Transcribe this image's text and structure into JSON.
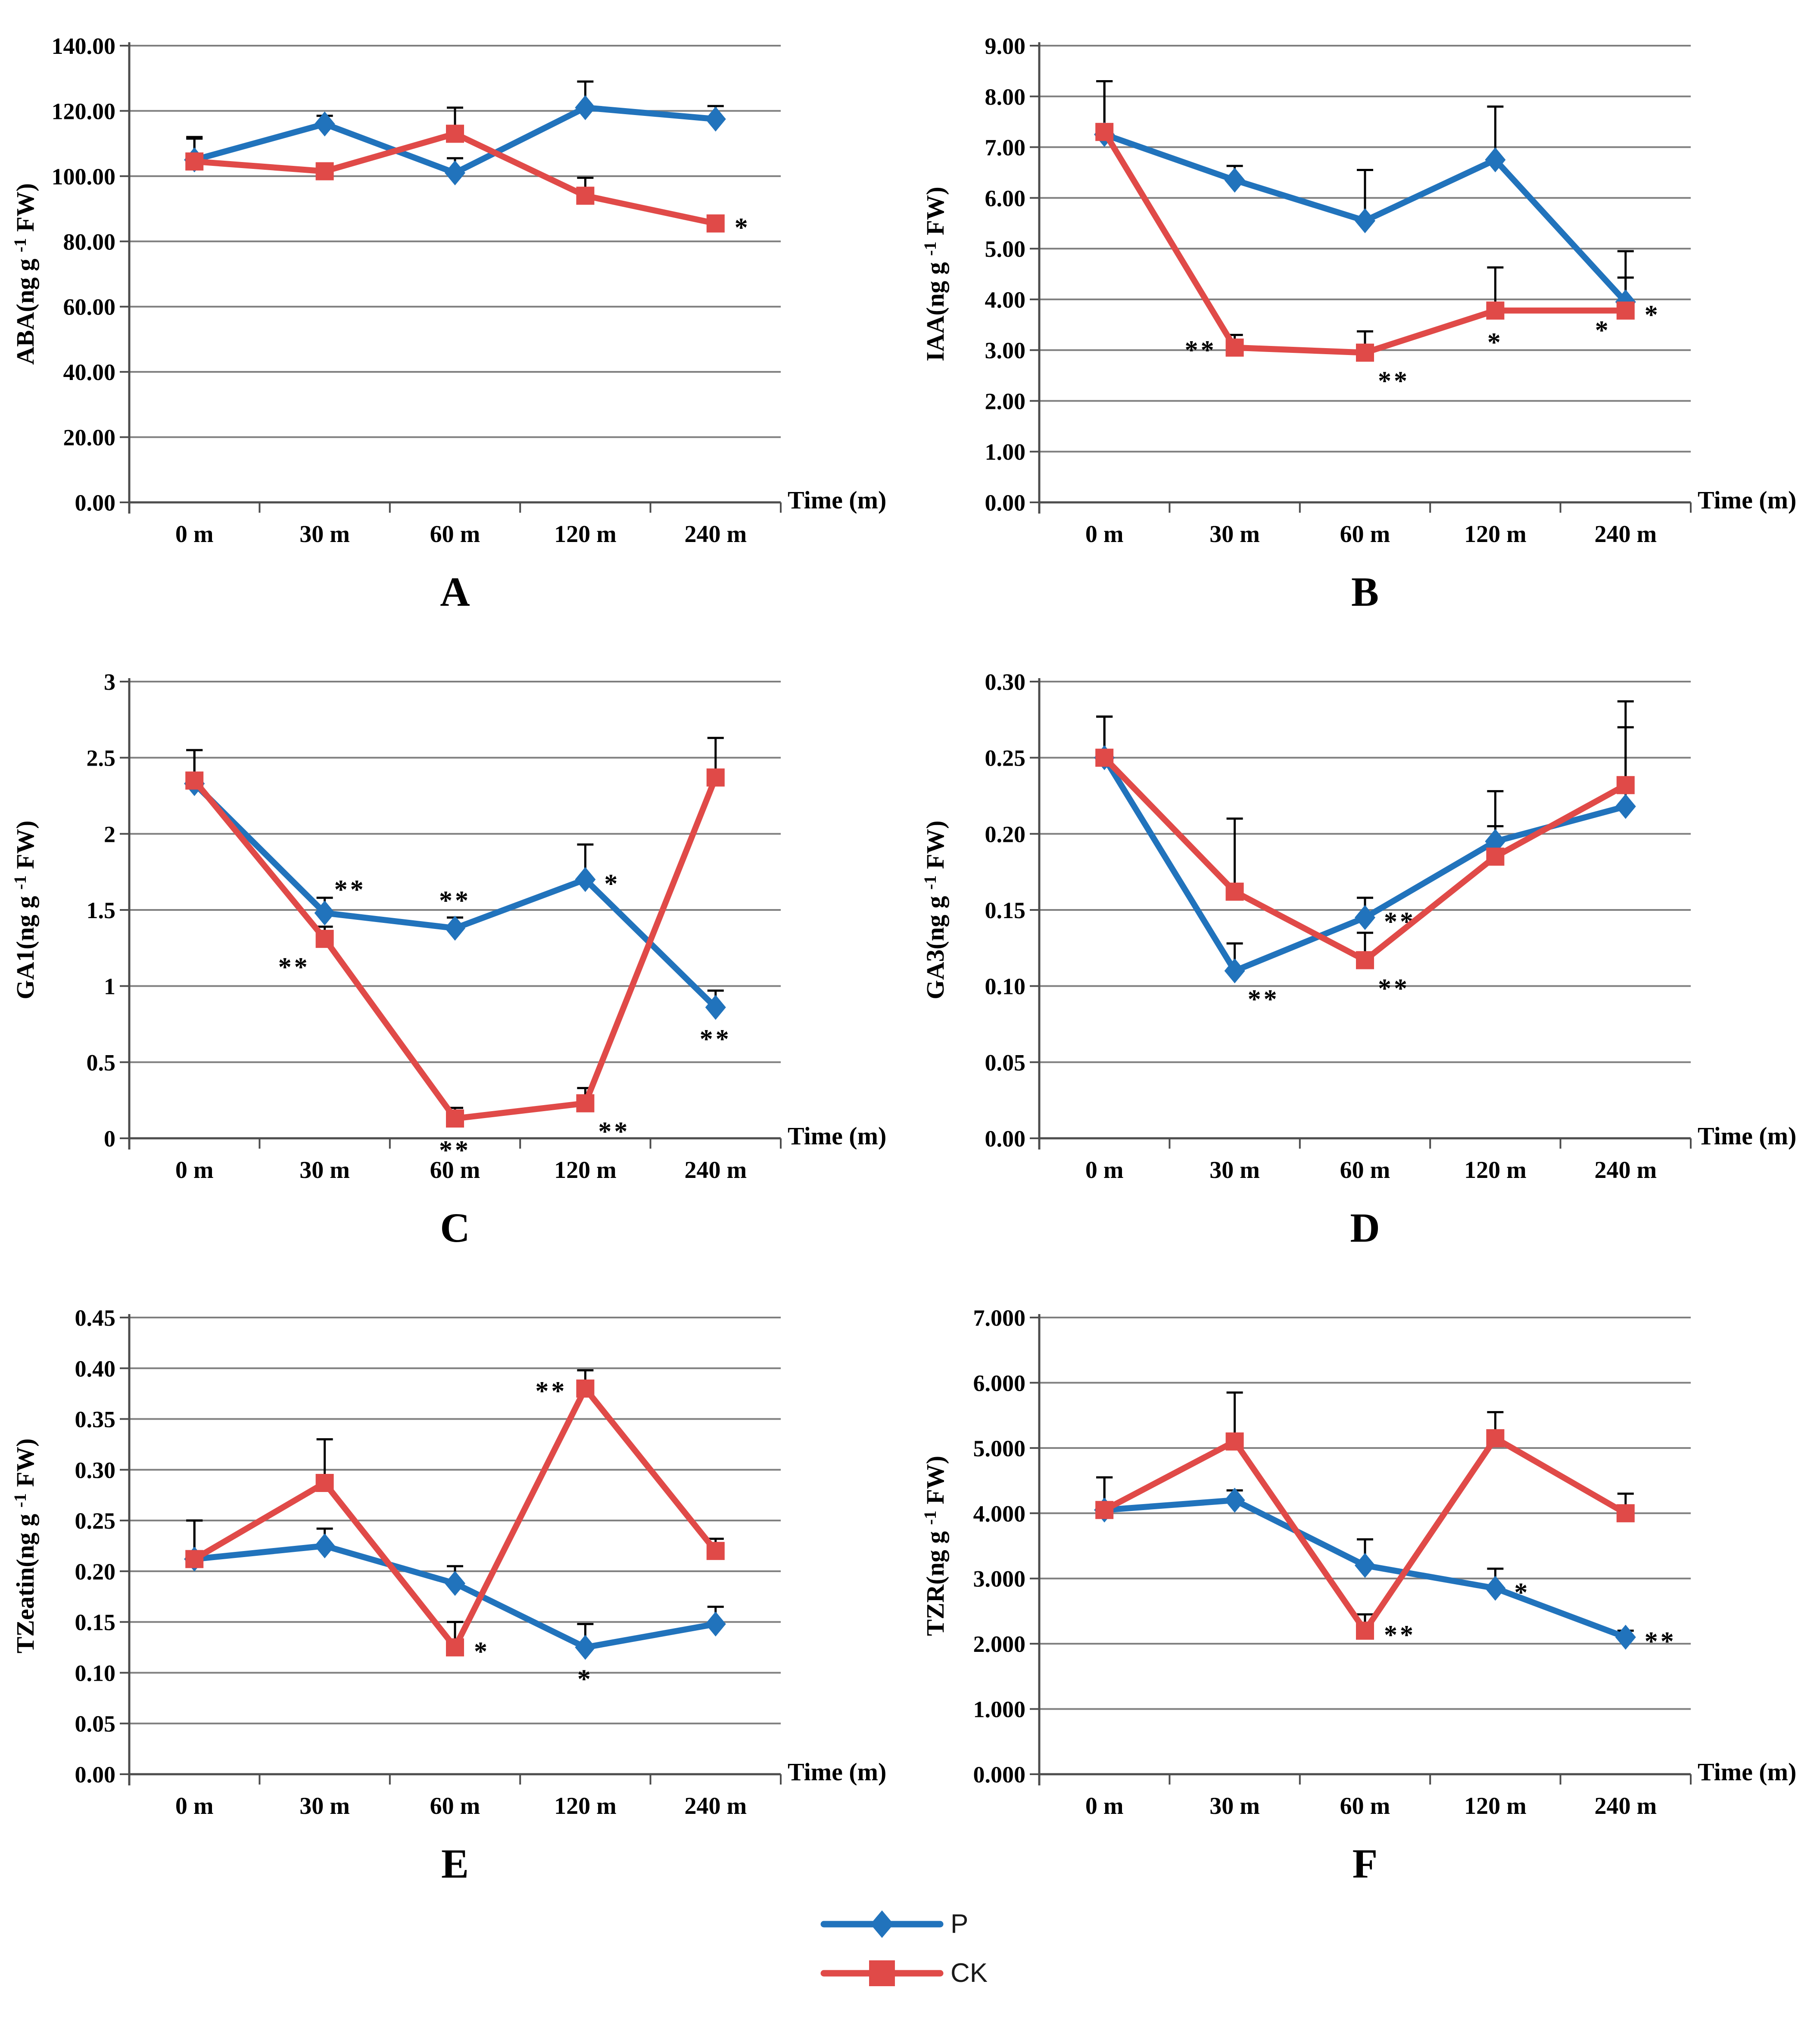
{
  "page": {
    "background": "#ffffff"
  },
  "colors": {
    "p_series": "#2173BC",
    "ck_series": "#E04A48",
    "error_bar": "#000000",
    "gridline": "#7F7F7F",
    "axis": "#4D4D4D",
    "text": "#000000"
  },
  "legend": {
    "items": [
      {
        "key": "P",
        "label": "P",
        "color": "#2173BC",
        "marker": "diamond"
      },
      {
        "key": "CK",
        "label": "CK",
        "color": "#E04A48",
        "marker": "square"
      }
    ]
  },
  "x_axis": {
    "categories": [
      "0 m",
      "30 m",
      "60 m",
      "120 m",
      "240 m"
    ],
    "title": "Time (m)"
  },
  "chart_data": [
    {
      "type": "line",
      "letter": "A",
      "ylabel": {
        "pre": "ABA(ng g ",
        "sup": "-1",
        "post": " FW)"
      },
      "ylim": [
        0,
        140
      ],
      "ytick_values": [
        0,
        20,
        40,
        60,
        80,
        100,
        120,
        140
      ],
      "ytick_labels": [
        "0.00",
        "20.00",
        "40.00",
        "60.00",
        "80.00",
        "100.00",
        "120.00",
        "140.00"
      ],
      "grid": true,
      "legend_position": "none",
      "categories": [
        "0 m",
        "30 m",
        "60 m",
        "120 m",
        "240 m"
      ],
      "series": [
        {
          "name": "P",
          "marker": "diamond",
          "values": [
            105,
            116,
            101,
            121,
            117.5
          ],
          "errors": [
            7,
            2.5,
            4.5,
            8,
            4
          ],
          "sig": [
            null,
            null,
            null,
            null,
            null
          ]
        },
        {
          "name": "CK",
          "marker": "square",
          "values": [
            104.5,
            101.5,
            113,
            94,
            85.5
          ],
          "errors": [
            7,
            1.5,
            8,
            5.5,
            2
          ],
          "sig": [
            null,
            null,
            null,
            null,
            {
              "text": "*",
              "pos": "right"
            }
          ]
        }
      ]
    },
    {
      "type": "line",
      "letter": "B",
      "ylabel": {
        "pre": "IAA(ng g ",
        "sup": "-1",
        "post": " FW)"
      },
      "ylim": [
        0,
        9
      ],
      "ytick_values": [
        0,
        1,
        2,
        3,
        4,
        5,
        6,
        7,
        8,
        9
      ],
      "ytick_labels": [
        "0.00",
        "1.00",
        "2.00",
        "3.00",
        "4.00",
        "5.00",
        "6.00",
        "7.00",
        "8.00",
        "9.00"
      ],
      "grid": true,
      "legend_position": "none",
      "categories": [
        "0 m",
        "30 m",
        "60 m",
        "120 m",
        "240 m"
      ],
      "series": [
        {
          "name": "P",
          "marker": "diamond",
          "values": [
            7.25,
            6.35,
            5.55,
            6.75,
            3.95
          ],
          "errors": [
            1.05,
            0.28,
            1.0,
            1.05,
            1.0
          ],
          "sig": [
            null,
            null,
            null,
            null,
            {
              "text": "*",
              "pos": "below-left"
            }
          ]
        },
        {
          "name": "CK",
          "marker": "square",
          "values": [
            7.3,
            3.05,
            2.95,
            3.78,
            3.78
          ],
          "errors": [
            1.0,
            0.25,
            0.42,
            0.85,
            0.65
          ],
          "sig": [
            null,
            {
              "text": "**",
              "pos": "left"
            },
            {
              "text": "**",
              "pos": "below-right"
            },
            {
              "text": "*",
              "pos": "below"
            },
            {
              "text": "*",
              "pos": "right"
            }
          ]
        }
      ]
    },
    {
      "type": "line",
      "letter": "C",
      "ylabel": {
        "pre": "GA1(ng g ",
        "sup": "-1",
        "post": " FW)"
      },
      "ylim": [
        0,
        3
      ],
      "ytick_values": [
        0,
        0.5,
        1,
        1.5,
        2,
        2.5,
        3
      ],
      "ytick_labels": [
        "0",
        "0.5",
        "1",
        "1.5",
        "2",
        "2.5",
        "3"
      ],
      "grid": true,
      "legend_position": "none",
      "categories": [
        "0 m",
        "30 m",
        "60 m",
        "120 m",
        "240 m"
      ],
      "series": [
        {
          "name": "P",
          "marker": "diamond",
          "values": [
            2.33,
            1.48,
            1.38,
            1.7,
            0.86
          ],
          "errors": [
            0.22,
            0.1,
            0.07,
            0.23,
            0.11
          ],
          "sig": [
            null,
            {
              "text": "**",
              "pos": "above-right"
            },
            {
              "text": "**",
              "pos": "above"
            },
            {
              "text": "*",
              "pos": "right"
            },
            {
              "text": "**",
              "pos": "below"
            }
          ]
        },
        {
          "name": "CK",
          "marker": "square",
          "values": [
            2.35,
            1.31,
            0.13,
            0.23,
            2.37
          ],
          "errors": [
            0.2,
            0.08,
            0.07,
            0.1,
            0.26
          ],
          "sig": [
            null,
            {
              "text": "**",
              "pos": "below-left"
            },
            {
              "text": "**",
              "pos": "below"
            },
            {
              "text": "**",
              "pos": "below-right"
            },
            null
          ]
        }
      ]
    },
    {
      "type": "line",
      "letter": "D",
      "ylabel": {
        "pre": "GA3(ng g ",
        "sup": "-1",
        "post": " FW)"
      },
      "ylim": [
        0,
        0.3
      ],
      "ytick_values": [
        0,
        0.05,
        0.1,
        0.15,
        0.2,
        0.25,
        0.3
      ],
      "ytick_labels": [
        "0.00",
        "0.05",
        "0.10",
        "0.15",
        "0.20",
        "0.25",
        "0.30"
      ],
      "grid": true,
      "legend_position": "none",
      "categories": [
        "0 m",
        "30 m",
        "60 m",
        "120 m",
        "240 m"
      ],
      "series": [
        {
          "name": "P",
          "marker": "diamond",
          "values": [
            0.25,
            0.11,
            0.145,
            0.195,
            0.218
          ],
          "errors": [
            0.027,
            0.018,
            0.013,
            0.033,
            0.052
          ],
          "sig": [
            null,
            {
              "text": "**",
              "pos": "below-right"
            },
            {
              "text": "**",
              "pos": "right"
            },
            null,
            null
          ]
        },
        {
          "name": "CK",
          "marker": "square",
          "values": [
            0.25,
            0.162,
            0.117,
            0.185,
            0.232
          ],
          "errors": [
            0.027,
            0.048,
            0.018,
            0.02,
            0.055
          ],
          "sig": [
            null,
            null,
            {
              "text": "**",
              "pos": "below-right"
            },
            null,
            null
          ]
        }
      ]
    },
    {
      "type": "line",
      "letter": "E",
      "ylabel": {
        "pre": "TZeatin(ng g ",
        "sup": "-1",
        "post": " FW)"
      },
      "ylim": [
        0,
        0.45
      ],
      "ytick_values": [
        0,
        0.05,
        0.1,
        0.15,
        0.2,
        0.25,
        0.3,
        0.35,
        0.4,
        0.45
      ],
      "ytick_labels": [
        "0.00",
        "0.05",
        "0.10",
        "0.15",
        "0.20",
        "0.25",
        "0.30",
        "0.35",
        "0.40",
        "0.45"
      ],
      "grid": true,
      "legend_position": "none",
      "categories": [
        "0 m",
        "30 m",
        "60 m",
        "120 m",
        "240 m"
      ],
      "series": [
        {
          "name": "P",
          "marker": "diamond",
          "values": [
            0.212,
            0.225,
            0.188,
            0.125,
            0.148
          ],
          "errors": [
            0.038,
            0.017,
            0.017,
            0.023,
            0.017
          ],
          "sig": [
            null,
            null,
            null,
            {
              "text": "*",
              "pos": "below"
            },
            null
          ]
        },
        {
          "name": "CK",
          "marker": "square",
          "values": [
            0.212,
            0.287,
            0.125,
            0.38,
            0.22
          ],
          "errors": [
            0.038,
            0.043,
            0.025,
            0.018,
            0.012
          ],
          "sig": [
            null,
            null,
            {
              "text": "*",
              "pos": "right"
            },
            {
              "text": "**",
              "pos": "left"
            },
            null
          ]
        }
      ]
    },
    {
      "type": "line",
      "letter": "F",
      "ylabel": {
        "pre": "TZR(ng g ",
        "sup": "-1",
        "post": " FW)"
      },
      "ylim": [
        0,
        7
      ],
      "ytick_values": [
        0,
        1,
        2,
        3,
        4,
        5,
        6,
        7
      ],
      "ytick_labels": [
        "0.000",
        "1.000",
        "2.000",
        "3.000",
        "4.000",
        "5.000",
        "6.000",
        "7.000"
      ],
      "grid": true,
      "legend_position": "none",
      "categories": [
        "0 m",
        "30 m",
        "60 m",
        "120 m",
        "240 m"
      ],
      "series": [
        {
          "name": "P",
          "marker": "diamond",
          "values": [
            4.05,
            4.2,
            3.2,
            2.85,
            2.1
          ],
          "errors": [
            0.5,
            0.15,
            0.4,
            0.3,
            0.1
          ],
          "sig": [
            null,
            null,
            null,
            {
              "text": "*",
              "pos": "right"
            },
            {
              "text": "**",
              "pos": "right"
            }
          ]
        },
        {
          "name": "CK",
          "marker": "square",
          "values": [
            4.05,
            5.1,
            2.2,
            5.15,
            4.0
          ],
          "errors": [
            0.5,
            0.75,
            0.25,
            0.4,
            0.3
          ],
          "sig": [
            null,
            null,
            {
              "text": "**",
              "pos": "right"
            },
            null,
            null
          ]
        }
      ]
    }
  ]
}
